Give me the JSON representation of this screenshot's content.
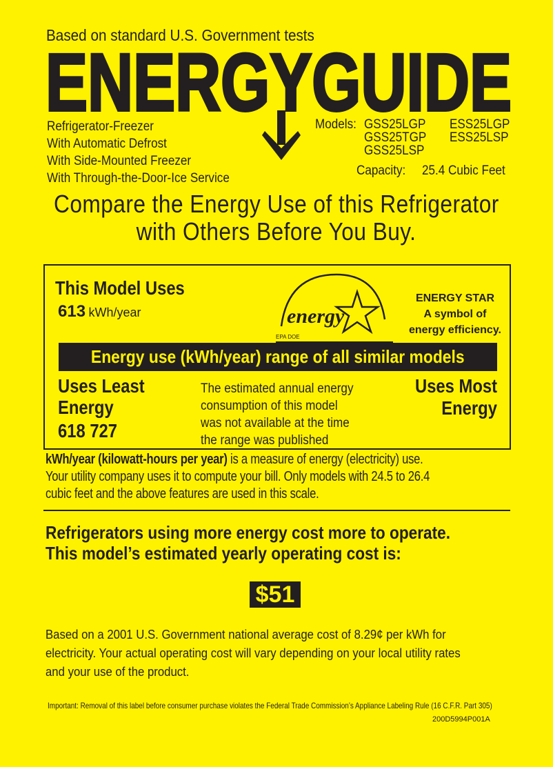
{
  "header": {
    "based_on": "Based on standard U.S. Government tests",
    "logo_text": "ENERGYGUIDE"
  },
  "product": {
    "features": [
      "Refrigerator-Freezer",
      "With Automatic Defrost",
      "With Side-Mounted Freezer",
      "With Through-the-Door-Ice Service"
    ],
    "models_label": "Models:",
    "models_col1": [
      "GSS25LGP",
      "GSS25TGP",
      "GSS25LSP"
    ],
    "models_col2": [
      "ESS25LGP",
      "ESS25LSP"
    ],
    "capacity_label": "Capacity:",
    "capacity_value": "25.4 Cubic Feet"
  },
  "compare": {
    "line1": "Compare the Energy Use of this Refrigerator",
    "line2": "with Others Before You Buy."
  },
  "usage": {
    "title": "This Model Uses",
    "value": "613",
    "unit": "kWh/year",
    "energy_star_logo_text": "energy",
    "energy_star_logo_sub": "EPA DOE",
    "energy_star": [
      "ENERGY STAR",
      "A symbol of",
      "energy efficiency."
    ],
    "range_bar": "Energy use (kWh/year) range of all similar models",
    "least_label": [
      "Uses Least",
      "Energy"
    ],
    "range_values": "618 727",
    "note": [
      "The estimated annual energy",
      "consumption of this model",
      "was not available at the time",
      "the range was published"
    ],
    "most_label": [
      "Uses Most",
      "Energy"
    ]
  },
  "definition": {
    "bold": "kWh/year (kilowatt-hours per year)",
    "rest": " is a measure of energy (electricity) use.",
    "line2": "Your utility company uses it to compute your bill. Only models with 24.5 to 26.4",
    "line3": "cubic feet and the above features are used in this scale."
  },
  "cost": {
    "heading1": "Refrigerators using more energy cost more to operate.",
    "heading2": "This model’s estimated yearly operating cost is:",
    "value": "$51",
    "basis": [
      "Based on a 2001 U.S. Government national average cost of 8.29¢ per kWh for",
      "electricity. Your actual operating cost will vary depending on your local utility rates",
      "and your use of the product."
    ]
  },
  "footer": {
    "important": "Important: Removal of this label before consumer purchase violates the Federal Trade Commission’s Appliance Labeling Rule (16 C.F.R. Part 305)",
    "code": "200D5994P001A"
  },
  "colors": {
    "background": "#fff200",
    "ink": "#231f20"
  }
}
